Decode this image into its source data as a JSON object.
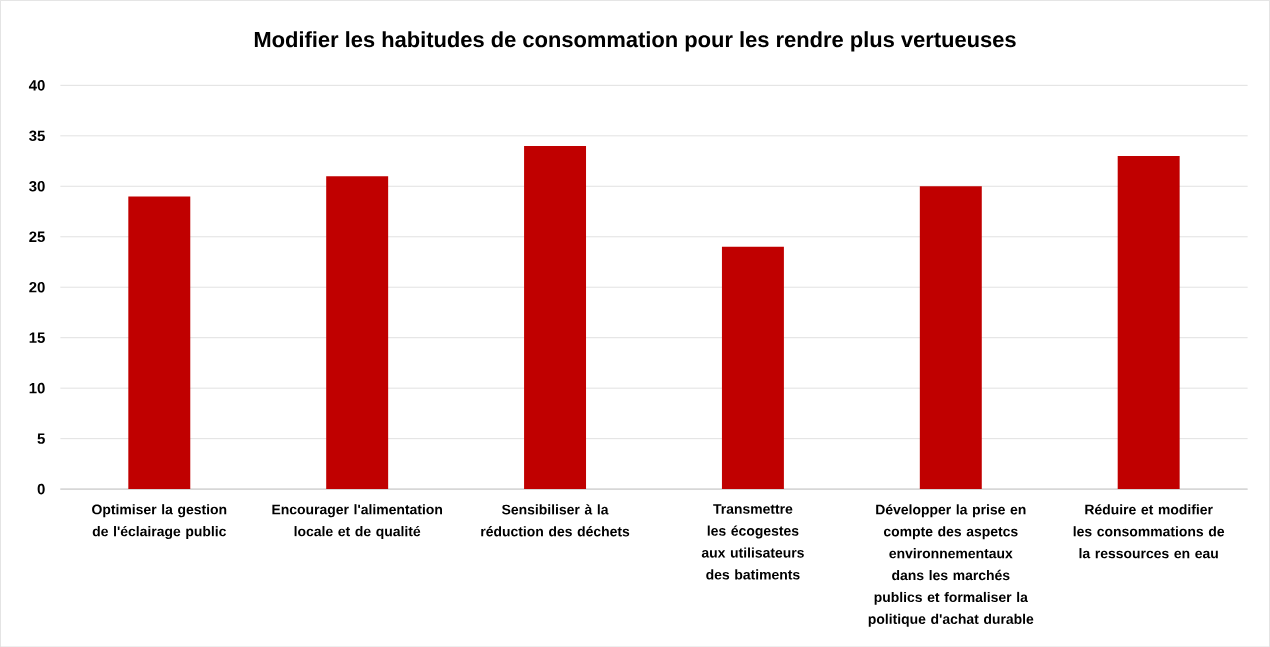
{
  "chart_data": {
    "type": "bar",
    "title": "Modifier les habitudes de consommation  pour les rendre plus vertueuses",
    "categories": [
      "Optimiser la gestion de l'éclairage public",
      "Encourager l'alimentation locale et de qualité",
      "Sensibiliser à la réduction des déchets",
      "Transmettre les écogestes aux utilisateurs des batiments",
      "Développer la prise en compte des aspetcs environnementaux dans les marchés publics et formaliser la politique d'achat durable",
      "Réduire et modifier les consommations de la ressources en eau"
    ],
    "values": [
      29,
      31,
      34,
      24,
      30,
      33
    ],
    "color": "#c00000",
    "ylim": [
      0,
      40
    ],
    "yticks": [
      0,
      5,
      10,
      15,
      20,
      25,
      30,
      35,
      40
    ],
    "grid": "y"
  }
}
